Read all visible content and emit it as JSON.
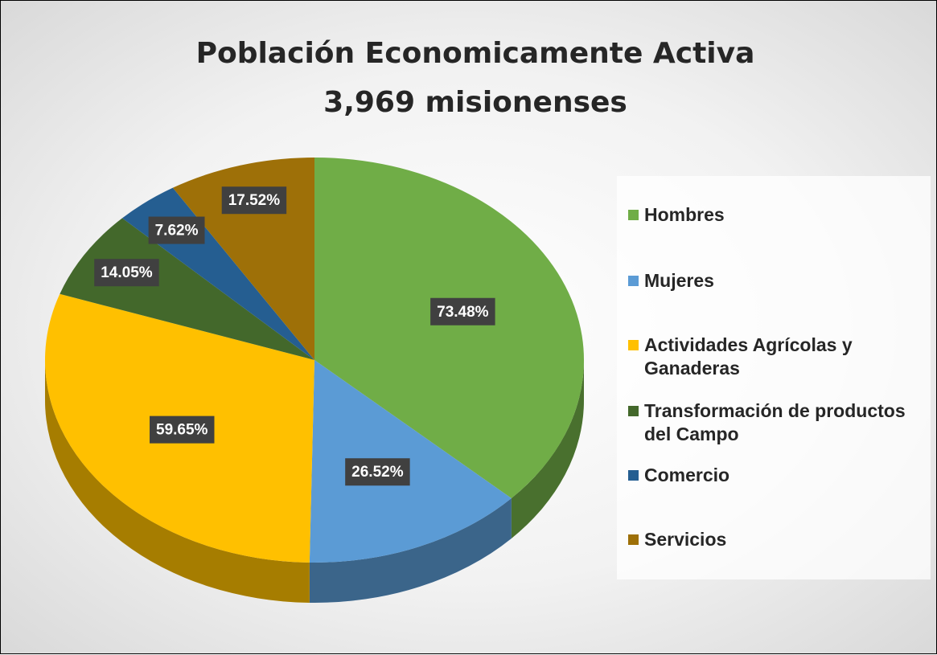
{
  "chart_data": {
    "type": "pie",
    "title": "Población Economicamente Activa",
    "subtitle": "3,969 misionenses",
    "categories": [
      "Hombres",
      "Mujeres",
      "Actividades Agrícolas y Ganaderas",
      "Transformación de productos del Campo",
      "Comercio",
      "Servicios"
    ],
    "values": [
      73.48,
      26.52,
      59.65,
      14.05,
      7.62,
      17.52
    ],
    "value_labels": [
      "73.48%",
      "26.52%",
      "59.65%",
      "14.05%",
      "7.62%",
      "17.52%"
    ],
    "colors": [
      "#70ad47",
      "#5b9bd5",
      "#ffc000",
      "#43682b",
      "#255e91",
      "#9e7008"
    ],
    "legend": "right"
  }
}
